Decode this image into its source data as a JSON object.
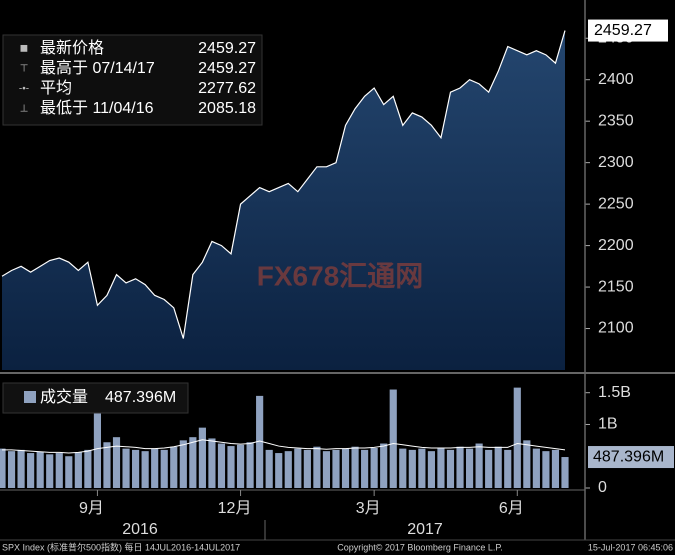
{
  "chart_data": [
    {
      "type": "area",
      "categories": [
        null,
        null,
        null,
        null,
        null,
        null,
        null,
        null,
        null,
        null,
        "9月",
        null,
        null,
        null,
        null,
        null,
        null,
        null,
        null,
        null,
        null,
        null,
        null,
        null,
        null,
        "12月",
        null,
        null,
        null,
        null,
        null,
        null,
        null,
        null,
        null,
        null,
        null,
        null,
        null,
        "3月",
        null,
        null,
        null,
        null,
        null,
        null,
        null,
        null,
        null,
        null,
        null,
        null,
        null,
        null,
        "6月",
        null,
        null,
        null,
        null,
        null
      ],
      "years": [
        "2016",
        "2017"
      ],
      "values": [
        2163,
        2170,
        2175,
        2168,
        2175,
        2182,
        2185,
        2180,
        2170,
        2180,
        2128,
        2140,
        2165,
        2155,
        2160,
        2153,
        2140,
        2135,
        2125,
        2088,
        2165,
        2180,
        2205,
        2200,
        2190,
        2250,
        2260,
        2270,
        2265,
        2270,
        2275,
        2265,
        2280,
        2295,
        2295,
        2300,
        2345,
        2365,
        2380,
        2390,
        2370,
        2380,
        2345,
        2360,
        2355,
        2345,
        2330,
        2385,
        2390,
        2400,
        2395,
        2385,
        2410,
        2440,
        2435,
        2430,
        2435,
        2430,
        2420,
        2459.27
      ],
      "color": "#1d3c62",
      "ylim": [
        2050,
        2472
      ],
      "yticks": [
        2100,
        2150,
        2200,
        2250,
        2300,
        2350,
        2400,
        2450
      ],
      "grid": false,
      "stats": [
        {
          "label": "最新价格",
          "value": "2459.27"
        },
        {
          "label": "最高于 07/14/17",
          "value": "2459.27"
        },
        {
          "label": "平均",
          "value": "2277.62"
        },
        {
          "label": "最低于 11/04/16",
          "value": "2085.18"
        }
      ]
    },
    {
      "type": "bar",
      "series": [
        {
          "name": "成交量",
          "color": "#8fa2c0",
          "values": [
            0.62,
            0.58,
            0.6,
            0.55,
            0.57,
            0.53,
            0.55,
            0.5,
            0.56,
            0.6,
            1.25,
            0.72,
            0.8,
            0.62,
            0.6,
            0.58,
            0.62,
            0.6,
            0.65,
            0.75,
            0.8,
            0.95,
            0.78,
            0.7,
            0.66,
            0.68,
            0.72,
            1.45,
            0.6,
            0.55,
            0.58,
            0.62,
            0.6,
            0.65,
            0.58,
            0.6,
            0.62,
            0.65,
            0.6,
            0.63,
            0.7,
            1.55,
            0.62,
            0.6,
            0.62,
            0.58,
            0.63,
            0.6,
            0.65,
            0.62,
            0.7,
            0.6,
            0.65,
            0.6,
            1.58,
            0.75,
            0.62,
            0.58,
            0.6,
            0.487396
          ]
        },
        {
          "color": "#ffffff",
          "values": [
            0.6,
            0.6,
            0.59,
            0.58,
            0.57,
            0.56,
            0.56,
            0.55,
            0.56,
            0.58,
            0.62,
            0.64,
            0.66,
            0.65,
            0.64,
            0.62,
            0.62,
            0.63,
            0.65,
            0.68,
            0.72,
            0.76,
            0.74,
            0.72,
            0.7,
            0.69,
            0.7,
            0.74,
            0.7,
            0.66,
            0.64,
            0.63,
            0.62,
            0.62,
            0.61,
            0.62,
            0.62,
            0.63,
            0.63,
            0.64,
            0.66,
            0.7,
            0.68,
            0.66,
            0.64,
            0.63,
            0.63,
            0.63,
            0.64,
            0.64,
            0.65,
            0.64,
            0.64,
            0.64,
            0.7,
            0.68,
            0.66,
            0.64,
            0.62,
            0.6
          ]
        }
      ],
      "latest": {
        "value": 0.487396,
        "label": "487.396M"
      },
      "ylim": [
        0,
        1.7
      ],
      "yticks": [
        0,
        {
          "value": 1,
          "label": "1B"
        },
        {
          "value": 1.5,
          "label": "1.5B"
        }
      ]
    }
  ],
  "watermark": "FX678汇通网",
  "footer": {
    "left": "SPX Index (标准普尔500指数) 每日 14JUL2016-14JUL2017",
    "center": "Copyright© 2017 Bloomberg Finance L.P.",
    "right": "15-Jul-2017 06:45:06"
  }
}
